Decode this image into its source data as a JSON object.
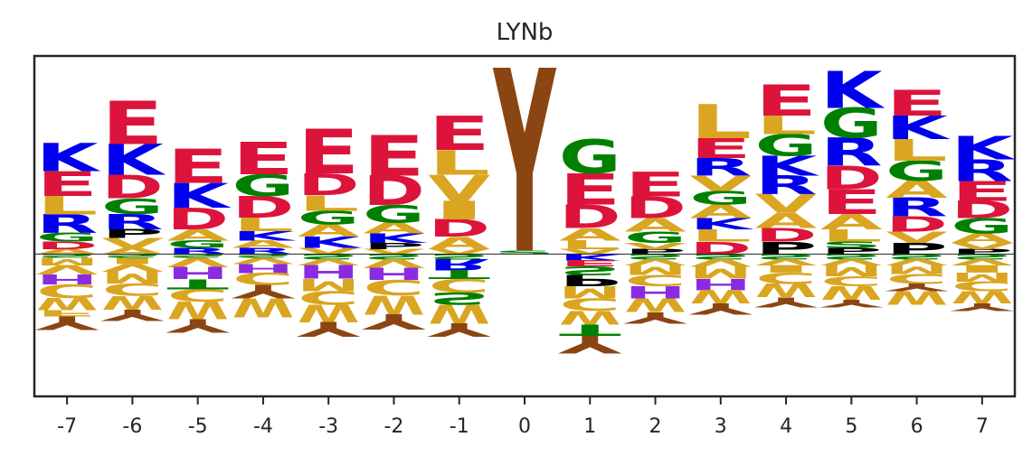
{
  "chart_data": {
    "type": "sequence-logo",
    "title": "LYNb",
    "xlabel": "",
    "ylabel": "",
    "positions": [
      -7,
      -6,
      -5,
      -4,
      -3,
      -2,
      -1,
      0,
      1,
      2,
      3,
      4,
      5,
      6,
      7
    ],
    "ylim": [
      -2.3,
      3.2
    ],
    "grid": false,
    "colors": {
      "K": "#0000ee",
      "R": "#0000ee",
      "H": "#8a2be2",
      "E": "#dc143c",
      "D": "#dc143c",
      "G": "#008000",
      "S": "#008000",
      "T": "#008000",
      "N": "#8b008b",
      "Q": "#8b008b",
      "A": "#daa520",
      "V": "#daa520",
      "L": "#daa520",
      "I": "#daa520",
      "M": "#daa520",
      "F": "#daa520",
      "W": "#daa520",
      "C": "#daa520",
      "P": "#000000",
      "Y": "#8b4513"
    },
    "columns": [
      {
        "pos": -7,
        "up": [
          [
            "A",
            0.08
          ],
          [
            "D",
            0.12
          ],
          [
            "G",
            0.14
          ],
          [
            "R",
            0.3
          ],
          [
            "L",
            0.3
          ],
          [
            "E",
            0.4
          ],
          [
            "K",
            0.45
          ]
        ],
        "down": [
          [
            "S",
            0.06
          ],
          [
            "M",
            0.12
          ],
          [
            "V",
            0.15
          ],
          [
            "H",
            0.16
          ],
          [
            "C",
            0.22
          ],
          [
            "W",
            0.2
          ],
          [
            "F",
            0.1
          ],
          [
            "Y",
            0.22
          ]
        ]
      },
      {
        "pos": -6,
        "up": [
          [
            "A",
            0.1
          ],
          [
            "V",
            0.16
          ],
          [
            "P",
            0.14
          ],
          [
            "R",
            0.25
          ],
          [
            "G",
            0.25
          ],
          [
            "D",
            0.38
          ],
          [
            "K",
            0.5
          ],
          [
            "E",
            0.7
          ]
        ],
        "down": [
          [
            "S",
            0.06
          ],
          [
            "I",
            0.1
          ],
          [
            "V",
            0.12
          ],
          [
            "M",
            0.2
          ],
          [
            "C",
            0.2
          ],
          [
            "W",
            0.22
          ],
          [
            "Y",
            0.18
          ]
        ]
      },
      {
        "pos": -5,
        "up": [
          [
            "R",
            0.1
          ],
          [
            "G",
            0.12
          ],
          [
            "A",
            0.18
          ],
          [
            "D",
            0.35
          ],
          [
            "K",
            0.4
          ],
          [
            "E",
            0.55
          ]
        ],
        "down": [
          [
            "S",
            0.06
          ],
          [
            "V",
            0.15
          ],
          [
            "H",
            0.2
          ],
          [
            "T",
            0.16
          ],
          [
            "C",
            0.2
          ],
          [
            "W",
            0.28
          ],
          [
            "Y",
            0.22
          ]
        ]
      },
      {
        "pos": -4,
        "up": [
          [
            "R",
            0.1
          ],
          [
            "A",
            0.12
          ],
          [
            "K",
            0.15
          ],
          [
            "L",
            0.22
          ],
          [
            "D",
            0.35
          ],
          [
            "G",
            0.35
          ],
          [
            "E",
            0.52
          ]
        ],
        "down": [
          [
            "S",
            0.06
          ],
          [
            "V",
            0.1
          ],
          [
            "H",
            0.14
          ],
          [
            "C",
            0.2
          ],
          [
            "Y",
            0.22
          ],
          [
            "W",
            0.3
          ]
        ]
      },
      {
        "pos": -3,
        "up": [
          [
            "V",
            0.1
          ],
          [
            "K",
            0.18
          ],
          [
            "A",
            0.2
          ],
          [
            "G",
            0.22
          ],
          [
            "L",
            0.25
          ],
          [
            "D",
            0.35
          ],
          [
            "E",
            0.72
          ]
        ],
        "down": [
          [
            "S",
            0.08
          ],
          [
            "V",
            0.1
          ],
          [
            "H",
            0.22
          ],
          [
            "M",
            0.2
          ],
          [
            "C",
            0.22
          ],
          [
            "W",
            0.28
          ],
          [
            "Y",
            0.24
          ]
        ]
      },
      {
        "pos": -2,
        "up": [
          [
            "V",
            0.08
          ],
          [
            "P",
            0.1
          ],
          [
            "K",
            0.15
          ],
          [
            "A",
            0.18
          ],
          [
            "G",
            0.28
          ],
          [
            "D",
            0.48
          ],
          [
            "E",
            0.65
          ]
        ],
        "down": [
          [
            "S",
            0.08
          ],
          [
            "V",
            0.14
          ],
          [
            "H",
            0.2
          ],
          [
            "C",
            0.25
          ],
          [
            "W",
            0.3
          ],
          [
            "Y",
            0.25
          ]
        ]
      },
      {
        "pos": -1,
        "up": [
          [
            "V",
            0.08
          ],
          [
            "A",
            0.2
          ],
          [
            "D",
            0.28
          ],
          [
            "I",
            0.3
          ],
          [
            "V",
            0.42
          ],
          [
            "L",
            0.4
          ],
          [
            "E",
            0.55
          ]
        ],
        "down": [
          [
            "S",
            0.08
          ],
          [
            "R",
            0.18
          ],
          [
            "T",
            0.14
          ],
          [
            "C",
            0.22
          ],
          [
            "S",
            0.2
          ],
          [
            "W",
            0.3
          ],
          [
            "Y",
            0.22
          ]
        ]
      },
      {
        "pos": 0,
        "up": [
          [
            "S",
            0.06
          ],
          [
            "Y",
            2.95
          ]
        ],
        "down": []
      },
      {
        "pos": 1,
        "up": [
          [
            "V",
            0.08
          ],
          [
            "L",
            0.14
          ],
          [
            "A",
            0.2
          ],
          [
            "D",
            0.38
          ],
          [
            "E",
            0.5
          ],
          [
            "G",
            0.55
          ]
        ],
        "down": [
          [
            "K",
            0.1
          ],
          [
            "E",
            0.1
          ],
          [
            "S",
            0.14
          ],
          [
            "P",
            0.18
          ],
          [
            "M",
            0.2
          ],
          [
            "C",
            0.2
          ],
          [
            "W",
            0.22
          ],
          [
            "T",
            0.18
          ],
          [
            "Y",
            0.28
          ]
        ]
      },
      {
        "pos": 2,
        "up": [
          [
            "P",
            0.08
          ],
          [
            "V",
            0.1
          ],
          [
            "G",
            0.18
          ],
          [
            "A",
            0.22
          ],
          [
            "D",
            0.35
          ],
          [
            "E",
            0.4
          ]
        ],
        "down": [
          [
            "S",
            0.08
          ],
          [
            "V",
            0.1
          ],
          [
            "M",
            0.16
          ],
          [
            "C",
            0.18
          ],
          [
            "H",
            0.2
          ],
          [
            "W",
            0.22
          ],
          [
            "Y",
            0.18
          ]
        ]
      },
      {
        "pos": 3,
        "up": [
          [
            "D",
            0.2
          ],
          [
            "L",
            0.2
          ],
          [
            "K",
            0.18
          ],
          [
            "A",
            0.22
          ],
          [
            "G",
            0.22
          ],
          [
            "V",
            0.25
          ],
          [
            "R",
            0.28
          ],
          [
            "E",
            0.32
          ],
          [
            "L",
            0.55
          ]
        ],
        "down": [
          [
            "S",
            0.08
          ],
          [
            "V",
            0.12
          ],
          [
            "M",
            0.2
          ],
          [
            "H",
            0.18
          ],
          [
            "W",
            0.22
          ],
          [
            "Y",
            0.18
          ]
        ]
      },
      {
        "pos": 4,
        "up": [
          [
            "P",
            0.2
          ],
          [
            "D",
            0.22
          ],
          [
            "A",
            0.25
          ],
          [
            "V",
            0.3
          ],
          [
            "R",
            0.3
          ],
          [
            "K",
            0.32
          ],
          [
            "G",
            0.35
          ],
          [
            "L",
            0.3
          ],
          [
            "E",
            0.5
          ]
        ],
        "down": [
          [
            "S",
            0.08
          ],
          [
            "V",
            0.1
          ],
          [
            "I",
            0.12
          ],
          [
            "C",
            0.18
          ],
          [
            "W",
            0.22
          ],
          [
            "Y",
            0.16
          ]
        ]
      },
      {
        "pos": 5,
        "up": [
          [
            "P",
            0.1
          ],
          [
            "S",
            0.1
          ],
          [
            "L",
            0.2
          ],
          [
            "A",
            0.25
          ],
          [
            "E",
            0.4
          ],
          [
            "D",
            0.38
          ],
          [
            "R",
            0.45
          ],
          [
            "G",
            0.48
          ],
          [
            "K",
            0.6
          ]
        ],
        "down": [
          [
            "S",
            0.08
          ],
          [
            "V",
            0.1
          ],
          [
            "M",
            0.18
          ],
          [
            "C",
            0.16
          ],
          [
            "W",
            0.22
          ],
          [
            "Y",
            0.12
          ]
        ]
      },
      {
        "pos": 6,
        "up": [
          [
            "P",
            0.18
          ],
          [
            "V",
            0.18
          ],
          [
            "D",
            0.25
          ],
          [
            "R",
            0.3
          ],
          [
            "A",
            0.28
          ],
          [
            "G",
            0.32
          ],
          [
            "L",
            0.35
          ],
          [
            "K",
            0.38
          ],
          [
            "E",
            0.42
          ]
        ],
        "down": [
          [
            "S",
            0.08
          ],
          [
            "V",
            0.1
          ],
          [
            "M",
            0.14
          ],
          [
            "C",
            0.16
          ],
          [
            "Y",
            0.12
          ],
          [
            "W",
            0.22
          ]
        ]
      },
      {
        "pos": 7,
        "up": [
          [
            "P",
            0.08
          ],
          [
            "V",
            0.1
          ],
          [
            "A",
            0.15
          ],
          [
            "G",
            0.25
          ],
          [
            "D",
            0.28
          ],
          [
            "E",
            0.32
          ],
          [
            "R",
            0.35
          ],
          [
            "K",
            0.38
          ]
        ],
        "down": [
          [
            "S",
            0.08
          ],
          [
            "V",
            0.1
          ],
          [
            "I",
            0.12
          ],
          [
            "M",
            0.14
          ],
          [
            "C",
            0.16
          ],
          [
            "W",
            0.2
          ],
          [
            "Y",
            0.12
          ]
        ]
      }
    ]
  }
}
